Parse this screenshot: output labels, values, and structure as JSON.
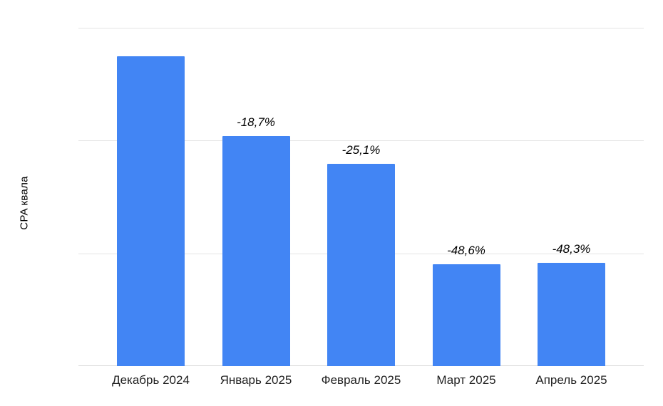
{
  "chart_data": {
    "type": "bar",
    "title": "",
    "xlabel": "",
    "ylabel": "CPA квала",
    "categories": [
      "Декабрь 2024",
      "Январь 2025",
      "Февраль 2025",
      "Март 2025",
      "Апрель 2025"
    ],
    "series": [
      {
        "name": "CPA квала",
        "values_relative_to_first_pct": [
          100,
          81.3,
          74.9,
          51.4,
          51.7
        ],
        "bar_value_labels": [
          "",
          "-18,7%",
          "-25,1%",
          "-48,6%",
          "-48,3%"
        ]
      }
    ],
    "layout": {
      "axis_y_min_relative": 27.5,
      "axis_y_max_relative": 106.7,
      "gridlines": 4,
      "grid": true,
      "legend": "none",
      "y_tick_labels_shown": false
    },
    "colors": {
      "bar": "#4285f4",
      "grid": "#e4e4e4",
      "baseline": "#d8d8d8",
      "value_label_text": "#000000",
      "axis_label_text": "#1f1f1f",
      "background": "#ffffff"
    }
  }
}
